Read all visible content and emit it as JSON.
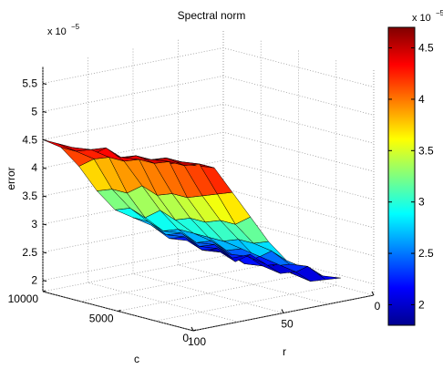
{
  "chart_data": {
    "type": "surface3d",
    "title": "Spectral norm",
    "zlabel": "error",
    "xlabel": "c",
    "ylabel": "r",
    "z_exponent_label": "x 10",
    "z_exponent_power": "−5",
    "colorbar_exponent_label": "x 10",
    "colorbar_exponent_power": "−5",
    "colormap": "jet",
    "zlim": [
      1.8,
      5.8
    ],
    "clim": [
      1.8,
      4.7
    ],
    "z_ticks": [
      "2",
      "2.5",
      "3",
      "3.5",
      "4",
      "4.5",
      "5",
      "5.5"
    ],
    "c_ticks": [
      "10000",
      "5000",
      "0"
    ],
    "r_ticks": [
      "100",
      "50",
      "0"
    ],
    "colorbar_ticks": [
      "2",
      "2.5",
      "3",
      "3.5",
      "4",
      "4.5"
    ],
    "c_values": [
      1000,
      2000,
      3000,
      4000,
      5000,
      6000,
      7000,
      8000,
      9000,
      10000
    ],
    "r_values": [
      10,
      20,
      30,
      40,
      50,
      60,
      70,
      80,
      90,
      100
    ],
    "z_values": [
      [
        2.1,
        2.2,
        2.4,
        2.6,
        3.0,
        3.5,
        4.0,
        4.5,
        4.6,
        4.7
      ],
      [
        2.0,
        2.3,
        2.4,
        2.7,
        2.9,
        3.3,
        3.9,
        4.5,
        4.6,
        4.6
      ],
      [
        1.9,
        2.1,
        2.3,
        2.5,
        2.9,
        3.3,
        3.8,
        4.4,
        4.6,
        4.6
      ],
      [
        2.0,
        2.2,
        2.4,
        2.6,
        2.8,
        3.2,
        3.7,
        4.4,
        4.5,
        4.6
      ],
      [
        1.9,
        2.1,
        2.2,
        2.5,
        2.8,
        3.2,
        3.7,
        4.3,
        4.5,
        4.5
      ],
      [
        2.0,
        2.2,
        2.3,
        2.6,
        2.8,
        3.1,
        3.6,
        4.3,
        4.4,
        4.6
      ],
      [
        2.1,
        2.1,
        2.4,
        2.5,
        2.8,
        3.2,
        3.7,
        4.2,
        4.5,
        4.4
      ],
      [
        1.9,
        2.2,
        2.3,
        2.6,
        2.7,
        3.0,
        3.5,
        4.2,
        4.4,
        4.5
      ],
      [
        2.0,
        2.1,
        2.4,
        2.5,
        2.8,
        3.1,
        3.5,
        4.1,
        4.3,
        4.5
      ],
      [
        2.0,
        2.2,
        2.3,
        2.6,
        2.8,
        3.0,
        3.4,
        3.9,
        4.3,
        4.5
      ]
    ]
  }
}
